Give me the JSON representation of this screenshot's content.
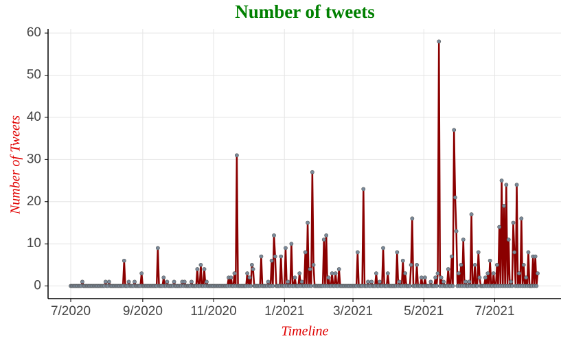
{
  "chart_data": {
    "type": "line",
    "title": "Number of tweets",
    "x_label": "Timeline",
    "y_label": "Number of Tweets",
    "line_color": "#8b0000",
    "marker_color": "#7a8a9a",
    "grid": true,
    "ylim": [
      -3,
      61
    ],
    "yticks": [
      0,
      10,
      20,
      30,
      40,
      50,
      60
    ],
    "categories": [
      "7/2020",
      null,
      null,
      null,
      null,
      null,
      null,
      null,
      null,
      null,
      null,
      null,
      null,
      null,
      null,
      null,
      null,
      null,
      null,
      null,
      null,
      null,
      null,
      null,
      null,
      null,
      null,
      null,
      null,
      null,
      null,
      null,
      null,
      null,
      null,
      null,
      null,
      null,
      null,
      null,
      null,
      null,
      null,
      null,
      null,
      null,
      null,
      null,
      null,
      null,
      null,
      null,
      null,
      null,
      null,
      null,
      null,
      null,
      null,
      null,
      null,
      null,
      "9/2020",
      null,
      null,
      null,
      null,
      null,
      null,
      null,
      null,
      null,
      null,
      null,
      null,
      null,
      null,
      null,
      null,
      null,
      null,
      null,
      null,
      null,
      null,
      null,
      null,
      null,
      null,
      null,
      null,
      null,
      null,
      null,
      null,
      null,
      null,
      null,
      null,
      null,
      null,
      null,
      null,
      null,
      null,
      null,
      null,
      null,
      null,
      null,
      null,
      null,
      null,
      null,
      null,
      null,
      null,
      null,
      null,
      null,
      null,
      null,
      null,
      "11/2020",
      null,
      null,
      null,
      null,
      null,
      null,
      null,
      null,
      null,
      null,
      null,
      null,
      null,
      null,
      null,
      null,
      null,
      null,
      null,
      null,
      null,
      null,
      null,
      null,
      null,
      null,
      null,
      null,
      null,
      null,
      null,
      null,
      null,
      null,
      null,
      null,
      null,
      null,
      null,
      null,
      null,
      null,
      null,
      null,
      null,
      null,
      null,
      null,
      null,
      null,
      null,
      null,
      null,
      null,
      null,
      null,
      null,
      null,
      null,
      null,
      "1/2021",
      null,
      null,
      null,
      null,
      null,
      null,
      null,
      null,
      null,
      null,
      null,
      null,
      null,
      null,
      null,
      null,
      null,
      null,
      null,
      null,
      null,
      null,
      null,
      null,
      null,
      null,
      null,
      null,
      null,
      null,
      null,
      null,
      null,
      null,
      null,
      null,
      null,
      null,
      null,
      null,
      null,
      null,
      null,
      null,
      null,
      null,
      null,
      null,
      null,
      null,
      null,
      null,
      null,
      null,
      null,
      null,
      null,
      null,
      "3/2021",
      null,
      null,
      null,
      null,
      null,
      null,
      null,
      null,
      null,
      null,
      null,
      null,
      null,
      null,
      null,
      null,
      null,
      null,
      null,
      null,
      null,
      null,
      null,
      null,
      null,
      null,
      null,
      null,
      null,
      null,
      null,
      null,
      null,
      null,
      null,
      null,
      null,
      null,
      null,
      null,
      null,
      null,
      null,
      null,
      null,
      null,
      null,
      null,
      null,
      null,
      null,
      null,
      null,
      null,
      null,
      null,
      null,
      null,
      null,
      null,
      "5/2021",
      null,
      null,
      null,
      null,
      null,
      null,
      null,
      null,
      null,
      null,
      null,
      null,
      null,
      null,
      null,
      null,
      null,
      null,
      null,
      null,
      null,
      null,
      null,
      null,
      null,
      null,
      null,
      null,
      null,
      null,
      null,
      null,
      null,
      null,
      null,
      null,
      null,
      null,
      null,
      null,
      null,
      null,
      null,
      null,
      null,
      null,
      null,
      null,
      null,
      null,
      null,
      null,
      null,
      null,
      null,
      null,
      null,
      null,
      null,
      null,
      "7/2021",
      null,
      null,
      null,
      null,
      null,
      null,
      null,
      null,
      null,
      null,
      null,
      null,
      null,
      null,
      null,
      null,
      null,
      null,
      null,
      null,
      null,
      null,
      null,
      null,
      null,
      null,
      null,
      null,
      null,
      null,
      null,
      null,
      null,
      null,
      null,
      null,
      null
    ],
    "values": [
      0,
      0,
      0,
      0,
      0,
      0,
      0,
      0,
      0,
      0,
      1,
      0,
      0,
      0,
      0,
      0,
      0,
      0,
      0,
      0,
      0,
      0,
      0,
      0,
      0,
      0,
      0,
      0,
      0,
      0,
      1,
      0,
      0,
      1,
      0,
      0,
      0,
      0,
      0,
      0,
      0,
      0,
      0,
      0,
      0,
      0,
      6,
      0,
      0,
      0,
      1,
      0,
      0,
      0,
      0,
      1,
      0,
      0,
      0,
      0,
      0,
      3,
      0,
      0,
      0,
      0,
      0,
      0,
      0,
      0,
      0,
      0,
      0,
      0,
      0,
      9,
      0,
      0,
      0,
      0,
      2,
      0,
      0,
      1,
      0,
      0,
      0,
      0,
      0,
      1,
      0,
      0,
      0,
      0,
      0,
      0,
      1,
      0,
      1,
      0,
      0,
      0,
      0,
      0,
      1,
      0,
      0,
      0,
      0,
      4,
      0,
      0,
      5,
      0,
      0,
      4,
      0,
      1,
      0,
      0,
      0,
      0,
      0,
      0,
      0,
      0,
      0,
      0,
      0,
      0,
      0,
      0,
      0,
      0,
      0,
      0,
      2,
      0,
      2,
      0,
      0,
      3,
      0,
      31,
      0,
      0,
      0,
      0,
      0,
      0,
      0,
      0,
      3,
      0,
      2,
      0,
      5,
      4,
      0,
      0,
      0,
      0,
      0,
      0,
      7,
      0,
      0,
      0,
      0,
      0,
      1,
      0,
      0,
      6,
      0,
      12,
      7,
      0,
      0,
      0,
      0,
      7,
      0,
      0,
      0,
      9,
      0,
      1,
      0,
      0,
      10,
      0,
      0,
      2,
      0,
      0,
      0,
      3,
      0,
      1,
      0,
      0,
      8,
      0,
      15,
      0,
      4,
      0,
      27,
      5,
      0,
      0,
      0,
      0,
      0,
      0,
      0,
      0,
      11,
      0,
      12,
      0,
      2,
      0,
      0,
      3,
      0,
      0,
      3,
      0,
      0,
      4,
      0,
      0,
      0,
      0,
      0,
      0,
      0,
      0,
      0,
      0,
      0,
      0,
      0,
      0,
      0,
      8,
      0,
      0,
      0,
      0,
      23,
      0,
      0,
      0,
      1,
      0,
      0,
      1,
      0,
      0,
      0,
      3,
      0,
      0,
      1,
      0,
      0,
      9,
      0,
      0,
      0,
      3,
      0,
      0,
      0,
      0,
      0,
      0,
      0,
      8,
      0,
      1,
      0,
      0,
      6,
      0,
      3,
      0,
      0,
      0,
      0,
      5,
      16,
      0,
      0,
      0,
      5,
      0,
      0,
      0,
      2,
      0,
      0,
      2,
      0,
      0,
      0,
      0,
      1,
      0,
      0,
      0,
      2,
      0,
      3,
      58,
      0,
      2,
      0,
      1,
      0,
      0,
      0,
      4,
      0,
      0,
      7,
      0,
      37,
      21,
      13,
      0,
      3,
      0,
      5,
      0,
      11,
      0,
      1,
      0,
      0,
      1,
      0,
      17,
      0,
      0,
      5,
      0,
      0,
      8,
      2,
      0,
      0,
      0,
      0,
      2,
      0,
      3,
      0,
      6,
      0,
      0,
      3,
      0,
      0,
      5,
      0,
      14,
      0,
      25,
      0,
      19,
      0,
      24,
      0,
      11,
      0,
      1,
      0,
      15,
      8,
      0,
      24,
      0,
      3,
      0,
      16,
      0,
      5,
      0,
      2,
      0,
      8,
      0,
      0,
      0,
      7,
      0,
      7,
      0,
      3
    ]
  }
}
